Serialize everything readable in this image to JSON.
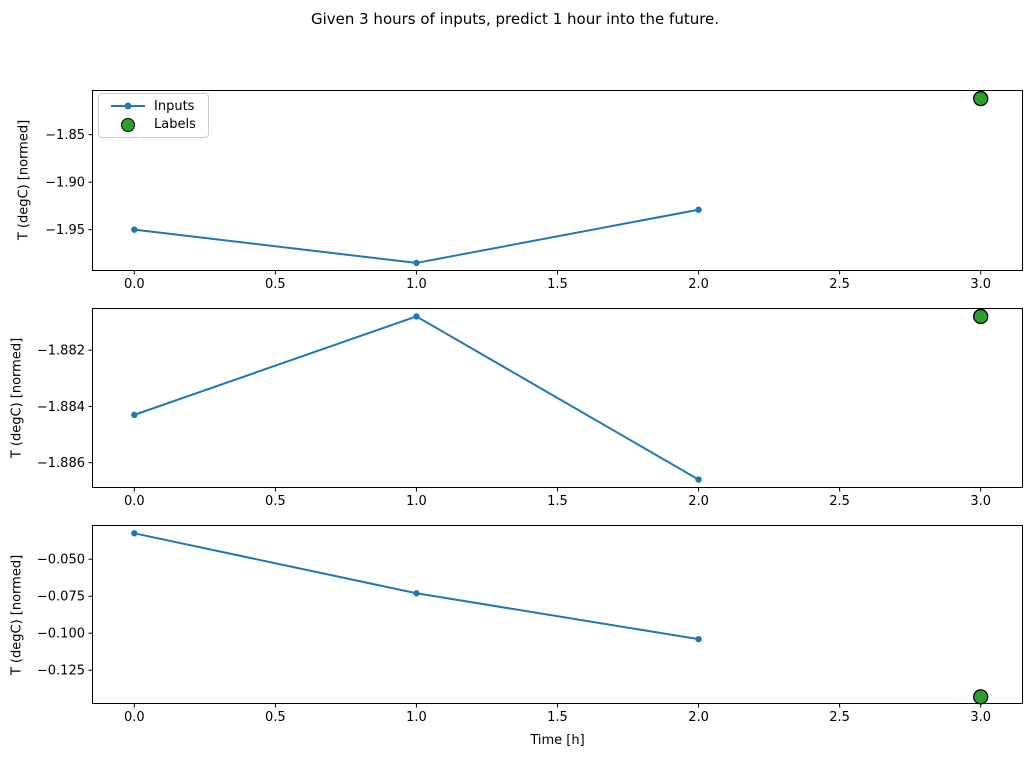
{
  "figure": {
    "title": "Given 3 hours of inputs, predict 1 hour into the future."
  },
  "colors": {
    "inputs_line": "#1f77b4",
    "labels_marker": "#2ca02c",
    "marker_edge": "#000000",
    "axis": "#000000",
    "legend_border": "#cccccc"
  },
  "legend": {
    "entries": [
      {
        "label": "Inputs"
      },
      {
        "label": "Labels"
      }
    ]
  },
  "chart_data": [
    {
      "type": "line",
      "title": "",
      "xlabel": "",
      "ylabel": "T (degC) [normed]",
      "x": [
        0,
        1,
        2
      ],
      "series": [
        {
          "name": "Inputs",
          "values": [
            -1.95,
            -1.985,
            -1.929
          ]
        }
      ],
      "labels_point": {
        "name": "Labels",
        "x": 3,
        "y": -1.812
      },
      "xlim": [
        -0.15,
        3.15
      ],
      "ylim": [
        -1.9935,
        -1.803
      ],
      "xticks": [
        0,
        0.5,
        1,
        1.5,
        2,
        2.5,
        3
      ],
      "xtick_labels": [
        "0.0",
        "0.5",
        "1.0",
        "1.5",
        "2.0",
        "2.5",
        "3.0"
      ],
      "yticks": [
        -1.85,
        -1.9,
        -1.95
      ],
      "ytick_labels": [
        "−1.85",
        "−1.90",
        "−1.95"
      ],
      "grid": false,
      "legend_position": "upper-left"
    },
    {
      "type": "line",
      "title": "",
      "xlabel": "",
      "ylabel": "T (degC) [normed]",
      "x": [
        0,
        1,
        2
      ],
      "series": [
        {
          "name": "Inputs",
          "values": [
            -1.8843,
            -1.8808,
            -1.8866
          ]
        }
      ],
      "labels_point": {
        "name": "Labels",
        "x": 3,
        "y": -1.8808
      },
      "xlim": [
        -0.15,
        3.15
      ],
      "ylim": [
        -1.8869,
        -1.8805
      ],
      "xticks": [
        0,
        0.5,
        1,
        1.5,
        2,
        2.5,
        3
      ],
      "xtick_labels": [
        "0.0",
        "0.5",
        "1.0",
        "1.5",
        "2.0",
        "2.5",
        "3.0"
      ],
      "yticks": [
        -1.882,
        -1.884,
        -1.886
      ],
      "ytick_labels": [
        "−1.882",
        "−1.884",
        "−1.886"
      ],
      "grid": false,
      "legend_position": null
    },
    {
      "type": "line",
      "title": "",
      "xlabel": "Time [h]",
      "ylabel": "T (degC) [normed]",
      "x": [
        0,
        1,
        2
      ],
      "series": [
        {
          "name": "Inputs",
          "values": [
            -0.0325,
            -0.073,
            -0.104
          ]
        }
      ],
      "labels_point": {
        "name": "Labels",
        "x": 3,
        "y": -0.143
      },
      "xlim": [
        -0.15,
        3.15
      ],
      "ylim": [
        -0.1478,
        -0.0269
      ],
      "xticks": [
        0,
        0.5,
        1,
        1.5,
        2,
        2.5,
        3
      ],
      "xtick_labels": [
        "0.0",
        "0.5",
        "1.0",
        "1.5",
        "2.0",
        "2.5",
        "3.0"
      ],
      "yticks": [
        -0.05,
        -0.075,
        -0.1,
        -0.125
      ],
      "ytick_labels": [
        "−0.050",
        "−0.075",
        "−0.100",
        "−0.125"
      ],
      "grid": false,
      "legend_position": null
    }
  ]
}
